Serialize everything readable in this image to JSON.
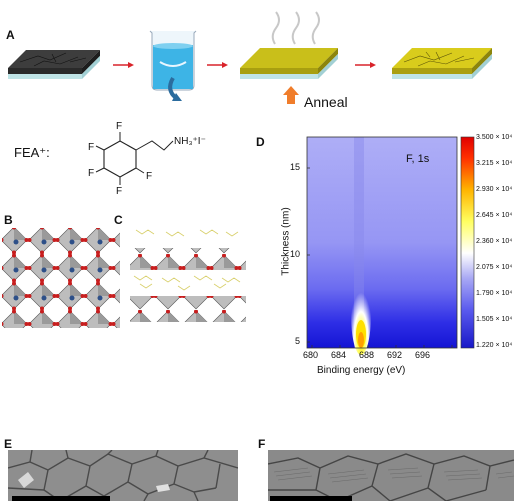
{
  "panels": {
    "a": "A",
    "b": "B",
    "c": "C",
    "d": "D",
    "e": "E",
    "f": "F"
  },
  "process": {
    "anneal_label": "Anneal",
    "colors": {
      "arrow": "#d9232a",
      "anneal_arrow": "#f07d2b",
      "film_dark": "#3a3a3a",
      "film_yellow": "#d6c91a",
      "substrate": "#bfe4e6",
      "liquid": "#3db4e6"
    }
  },
  "molecule": {
    "label": "FEA⁺:",
    "f1": "F",
    "f2": "F",
    "f3": "F",
    "f4": "F",
    "f5": "F",
    "amine": "NH₃⁺I⁻"
  },
  "chart_data": {
    "type": "heatmap",
    "annotation": "F, 1s",
    "xlabel": "Binding energy (eV)",
    "ylabel": "Thickness (nm)",
    "xlim": [
      677,
      698
    ],
    "ylim": [
      4,
      17.5
    ],
    "xticks": [
      "680",
      "684",
      "688",
      "692",
      "696"
    ],
    "yticks": [
      "5",
      "10",
      "15"
    ],
    "colorbar": {
      "min": 12200,
      "max": 35000,
      "ticks": [
        "3.500 × 10⁴",
        "3.215 × 10⁴",
        "2.930 × 10⁴",
        "2.645 × 10⁴",
        "2.360 × 10⁴",
        "2.075 × 10⁴",
        "1.790 × 10⁴",
        "1.505 × 10⁴",
        "1.220 × 10⁴"
      ],
      "colors": [
        "#1818c8",
        "#5a5aee",
        "#a8a8f4",
        "#ffffff",
        "#ffff60",
        "#ffb400",
        "#ff3000",
        "#e00000"
      ]
    },
    "peak": {
      "energy": 686.5,
      "max_intensity": 35000,
      "thickness_range": [
        4,
        7
      ]
    }
  }
}
